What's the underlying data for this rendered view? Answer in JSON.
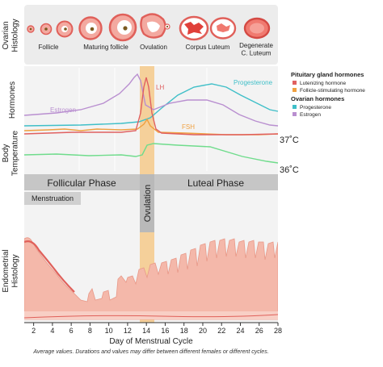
{
  "rows": {
    "ovarian": "Ovarian\nHistology",
    "hormones": "Hormones",
    "temperature": "Body\nTemperature",
    "endometrial": "Endometrial\nHistology"
  },
  "ovary_stages": [
    {
      "label": "Follicle"
    },
    {
      "label": "Maturing follicle"
    },
    {
      "label": "Ovulation"
    },
    {
      "label": "Corpus Luteum"
    },
    {
      "label": "Degenerate\nC. Luteum"
    }
  ],
  "hormone_labels": {
    "lh": "LH",
    "fsh": "FSH",
    "estrogen": "Estrogen",
    "progesterone": "Progesterone"
  },
  "legend": {
    "pituitary_title": "Pituitary gland hormones",
    "pituitary_items": [
      {
        "label": "Lutenizing hormone",
        "color": "#e06060"
      },
      {
        "label": "Follicle-stimulating hormone",
        "color": "#f0a040"
      }
    ],
    "ovarian_title": "Ovarian hormones",
    "ovarian_items": [
      {
        "label": "Progesterone",
        "color": "#3fbfc8"
      },
      {
        "label": "Estrogen",
        "color": "#b98fd0"
      }
    ]
  },
  "temperature_labels": {
    "high": "37˚C",
    "low": "36˚C"
  },
  "phases": {
    "follicular": "Follicular Phase",
    "luteal": "Luteal Phase",
    "ovulation": "Ovulation",
    "menstruation": "Menstruation"
  },
  "x_axis": {
    "title": "Day of Menstrual Cycle",
    "ticks": [
      "2",
      "4",
      "6",
      "8",
      "10",
      "12",
      "14",
      "16",
      "18",
      "20",
      "22",
      "24",
      "26",
      "28"
    ]
  },
  "footnote": "Average values. Durations and values may differ between different females or different cycles.",
  "colors": {
    "lh": "#e06060",
    "fsh": "#f0a040",
    "estrogen": "#b98fd0",
    "progesterone": "#3fbfc8",
    "temperature": "#6fdc8c",
    "ovulation_band": "#f5c98a",
    "endometrium": "#f4b8aa",
    "ovary": "#e8706a"
  }
}
